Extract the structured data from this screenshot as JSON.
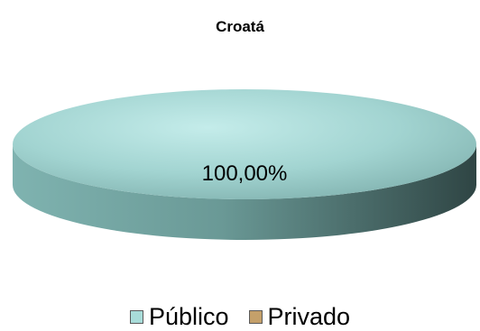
{
  "chart_data": {
    "type": "pie",
    "title": "Croatá",
    "categories": [
      "Público",
      "Privado"
    ],
    "values": [
      100.0,
      0.0
    ],
    "data_labels": [
      "100,00%",
      ""
    ],
    "colors": {
      "Público": "#a8dcd9",
      "Privado": "#c4a06a"
    },
    "legend_position": "bottom",
    "style": "3d"
  }
}
